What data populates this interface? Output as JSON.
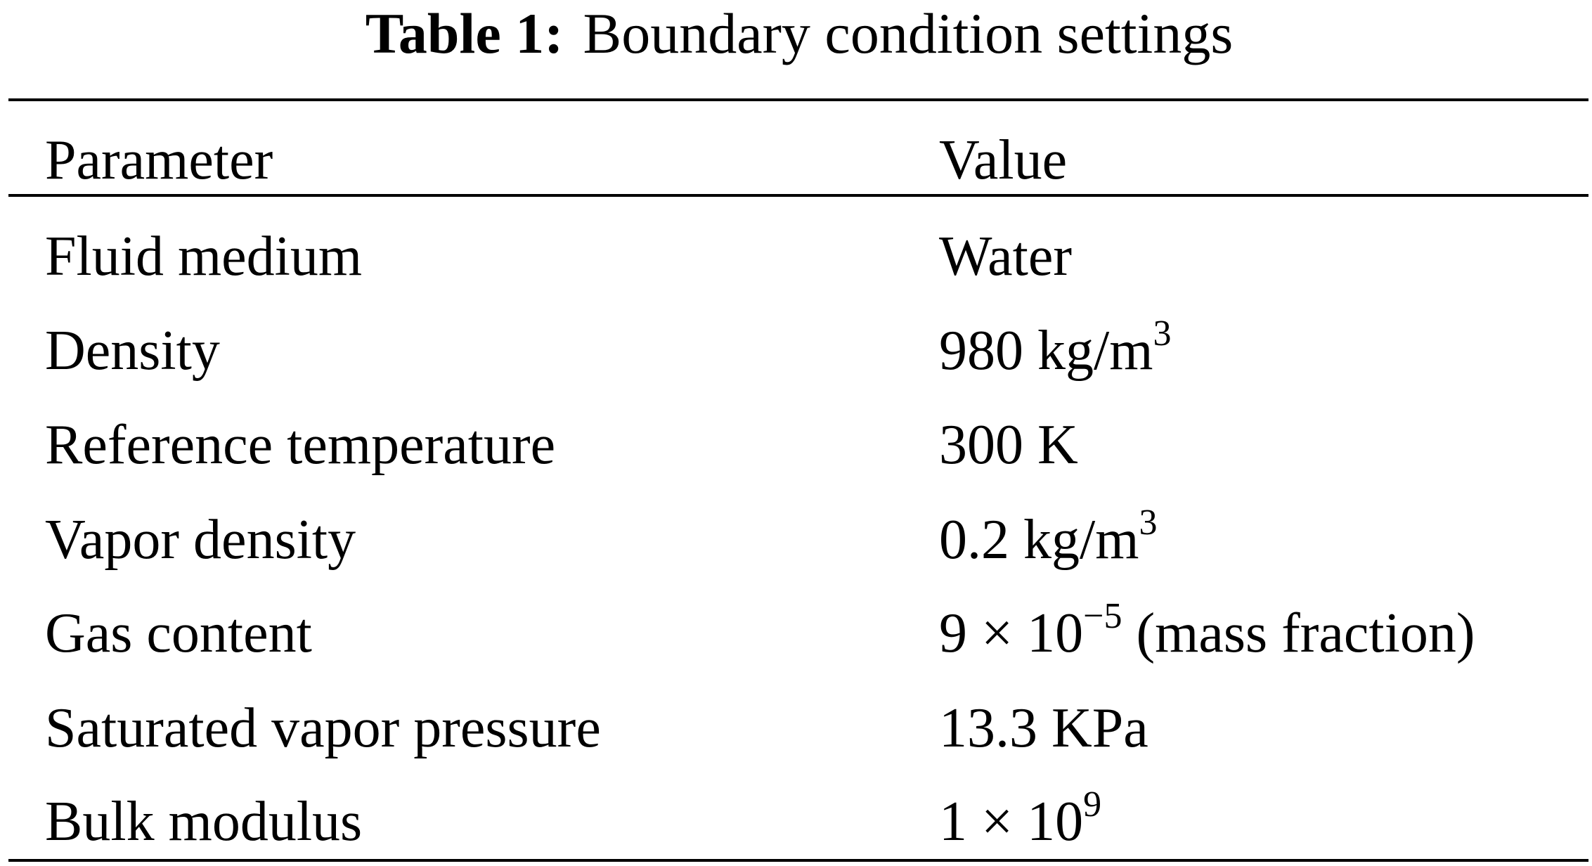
{
  "caption": {
    "label": "Table 1:",
    "text": "Boundary condition settings"
  },
  "table": {
    "header": [
      "Parameter",
      "Value"
    ],
    "rows": [
      [
        "Fluid medium",
        [
          {
            "text": "Water"
          }
        ]
      ],
      [
        "Density",
        [
          {
            "text": "980 kg/m"
          },
          {
            "sup": "3"
          }
        ]
      ],
      [
        "Reference temperature",
        [
          {
            "text": "300 K"
          }
        ]
      ],
      [
        "Vapor density",
        [
          {
            "text": "0.2 kg/m"
          },
          {
            "sup": "3"
          }
        ]
      ],
      [
        "Gas content",
        [
          {
            "text": "9 × 10"
          },
          {
            "sup": "−5"
          },
          {
            "text": " (mass fraction)"
          }
        ]
      ],
      [
        "Saturated vapor pressure",
        [
          {
            "text": "13.3 KPa"
          }
        ]
      ],
      [
        "Bulk modulus",
        [
          {
            "text": "1 × 10"
          },
          {
            "sup": "9"
          }
        ]
      ]
    ]
  }
}
